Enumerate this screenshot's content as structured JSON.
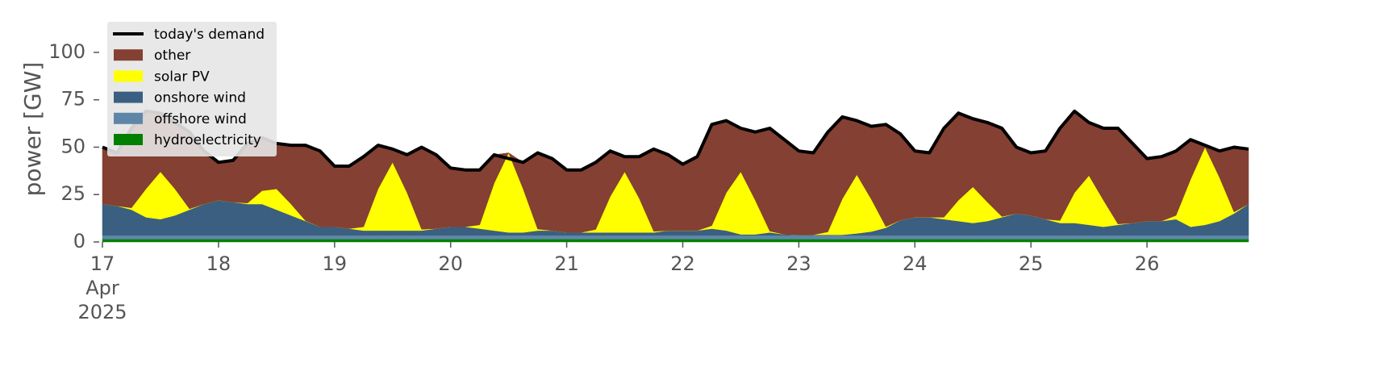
{
  "chart_data": {
    "type": "area",
    "stacked": true,
    "ylabel": "power [GW]",
    "x": [
      17,
      17.125,
      17.25,
      17.375,
      17.5,
      17.625,
      17.75,
      17.875,
      18,
      18.125,
      18.25,
      18.375,
      18.5,
      18.625,
      18.75,
      18.875,
      19,
      19.125,
      19.25,
      19.375,
      19.5,
      19.625,
      19.75,
      19.875,
      20,
      20.125,
      20.25,
      20.375,
      20.5,
      20.625,
      20.75,
      20.875,
      21,
      21.125,
      21.25,
      21.375,
      21.5,
      21.625,
      21.75,
      21.875,
      22,
      22.125,
      22.25,
      22.375,
      22.5,
      22.625,
      22.75,
      22.875,
      23,
      23.125,
      23.25,
      23.375,
      23.5,
      23.625,
      23.75,
      23.875,
      24,
      24.125,
      24.25,
      24.375,
      24.5,
      24.625,
      24.75,
      24.875,
      25,
      25.125,
      25.25,
      25.375,
      25.5,
      25.625,
      25.75,
      25.875,
      26,
      26.125,
      26.25,
      26.375,
      26.5,
      26.625,
      26.75,
      26.875
    ],
    "xlim": [
      17,
      26.875
    ],
    "xticks": [
      {
        "value": 17,
        "label": "17\nApr\n2025"
      },
      18,
      19,
      20,
      21,
      22,
      23,
      24,
      25,
      26
    ],
    "ylim": [
      0,
      117
    ],
    "yticks": [
      0,
      25,
      50,
      75,
      100
    ],
    "legend": "upper left",
    "series": [
      {
        "name": "today's demand",
        "type": "line",
        "color": "#000000",
        "values": [
          50,
          47,
          60,
          69,
          68,
          63,
          58,
          48,
          42,
          43,
          52,
          55,
          52,
          51,
          51,
          48,
          40,
          40,
          45,
          51,
          49,
          46,
          50,
          46,
          39,
          38,
          38,
          46,
          44,
          42,
          47,
          44,
          38,
          38,
          42,
          48,
          45,
          45,
          49,
          46,
          41,
          45,
          62,
          64,
          60,
          58,
          60,
          54,
          48,
          47,
          58,
          66,
          64,
          61,
          62,
          57,
          48,
          47,
          60,
          68,
          65,
          63,
          60,
          50,
          47,
          48,
          60,
          69,
          63,
          60,
          60,
          52,
          44,
          45,
          48,
          54,
          51,
          48,
          50,
          49
        ]
      },
      {
        "name": "other",
        "color": "#844032",
        "values": [
          30,
          28,
          42,
          41,
          31,
          35,
          40.5,
          28,
          20,
          22,
          31.5,
          28,
          24,
          31,
          39.8,
          40,
          32,
          33,
          37,
          23,
          7,
          20,
          43.3,
          39,
          31,
          30,
          29,
          15,
          0,
          14,
          40.2,
          38,
          33,
          33,
          35.4,
          24,
          8,
          22,
          43.4,
          40,
          35,
          39,
          53.4,
          38,
          23,
          36,
          54.3,
          50,
          44.2,
          43.2,
          52.7,
          43.2,
          28.5,
          38.5,
          53.9,
          45.5,
          35,
          34,
          47,
          46,
          36,
          42,
          46.6,
          35,
          33,
          36,
          48.7,
          43,
          28,
          38,
          50.5,
          42,
          33,
          34,
          34,
          21,
          1,
          14,
          34.2,
          29
        ]
      },
      {
        "name": "solar PV",
        "color": "#ffff00",
        "values": [
          0,
          0,
          1,
          15,
          25,
          14,
          0.5,
          0,
          0,
          0,
          0.5,
          7,
          11,
          6,
          0.2,
          0,
          0,
          0,
          2,
          22,
          36,
          20,
          0.7,
          0,
          0,
          0,
          2,
          25,
          42,
          23,
          0.8,
          0,
          0,
          0,
          1.6,
          19,
          32,
          18,
          0.6,
          0,
          0,
          0,
          1.6,
          20,
          33,
          18,
          0.7,
          0,
          0,
          0,
          1.5,
          19,
          31,
          17,
          0.6,
          0,
          0,
          0,
          1,
          11,
          19,
          10,
          0.4,
          0,
          0,
          0,
          1.3,
          16,
          26,
          14,
          0.5,
          0,
          0,
          0,
          2,
          25,
          41,
          23,
          0.8,
          0
        ]
      },
      {
        "name": "onshore wind",
        "color": "#3a5f80",
        "values": [
          16.5,
          15.5,
          13.5,
          9.5,
          8.5,
          10.5,
          13.5,
          16.5,
          18.5,
          17.5,
          16.5,
          16.5,
          13.5,
          10.5,
          7.5,
          4.5,
          4.5,
          3.5,
          2.5,
          2.5,
          2.5,
          2.5,
          2.5,
          3.5,
          4.5,
          4.5,
          3.5,
          2.5,
          1.5,
          1.5,
          2.5,
          2.5,
          1.5,
          1.5,
          1.5,
          1.5,
          1.5,
          1.5,
          1.5,
          2.5,
          2.5,
          2.5,
          3.5,
          2.5,
          0.5,
          0.5,
          1.5,
          0.5,
          0.3,
          0.3,
          0.3,
          0.3,
          1,
          2,
          4,
          8,
          9.5,
          9.5,
          8.5,
          7.5,
          6.5,
          7.5,
          9.5,
          11.5,
          10.5,
          8.5,
          6.5,
          6.5,
          5.5,
          4.5,
          5.5,
          6.5,
          7.5,
          7.5,
          8.5,
          4.5,
          5.5,
          7.5,
          11.5,
          16.5
        ]
      },
      {
        "name": "offshore wind",
        "color": "#5f86a8",
        "values": [
          2,
          2,
          2,
          2,
          2,
          2,
          2,
          2,
          2,
          2,
          2,
          2,
          2,
          2,
          2,
          2,
          2,
          2,
          2,
          2,
          2,
          2,
          2,
          2,
          2,
          2,
          2,
          2,
          2,
          2,
          2,
          2,
          2,
          2,
          2,
          2,
          2,
          2,
          2,
          2,
          2,
          2,
          2,
          2,
          2,
          2,
          2,
          2,
          2,
          2,
          2,
          2,
          2,
          2,
          2,
          2,
          2,
          2,
          2,
          2,
          2,
          2,
          2,
          2,
          2,
          2,
          2,
          2,
          2,
          2,
          2,
          2,
          2,
          2,
          2,
          2,
          2,
          2,
          2,
          2
        ]
      },
      {
        "name": "hydroelectricity",
        "color": "#008000",
        "values": [
          1.5,
          1.5,
          1.5,
          1.5,
          1.5,
          1.5,
          1.5,
          1.5,
          1.5,
          1.5,
          1.5,
          1.5,
          1.5,
          1.5,
          1.5,
          1.5,
          1.5,
          1.5,
          1.5,
          1.5,
          1.5,
          1.5,
          1.5,
          1.5,
          1.5,
          1.5,
          1.5,
          1.5,
          1.5,
          1.5,
          1.5,
          1.5,
          1.5,
          1.5,
          1.5,
          1.5,
          1.5,
          1.5,
          1.5,
          1.5,
          1.5,
          1.5,
          1.5,
          1.5,
          1.5,
          1.5,
          1.5,
          1.5,
          1.5,
          1.5,
          1.5,
          1.5,
          1.5,
          1.5,
          1.5,
          1.5,
          1.5,
          1.5,
          1.5,
          1.5,
          1.5,
          1.5,
          1.5,
          1.5,
          1.5,
          1.5,
          1.5,
          1.5,
          1.5,
          1.5,
          1.5,
          1.5,
          1.5,
          1.5,
          1.5,
          1.5,
          1.5,
          1.5,
          1.5,
          1.5
        ]
      }
    ]
  }
}
